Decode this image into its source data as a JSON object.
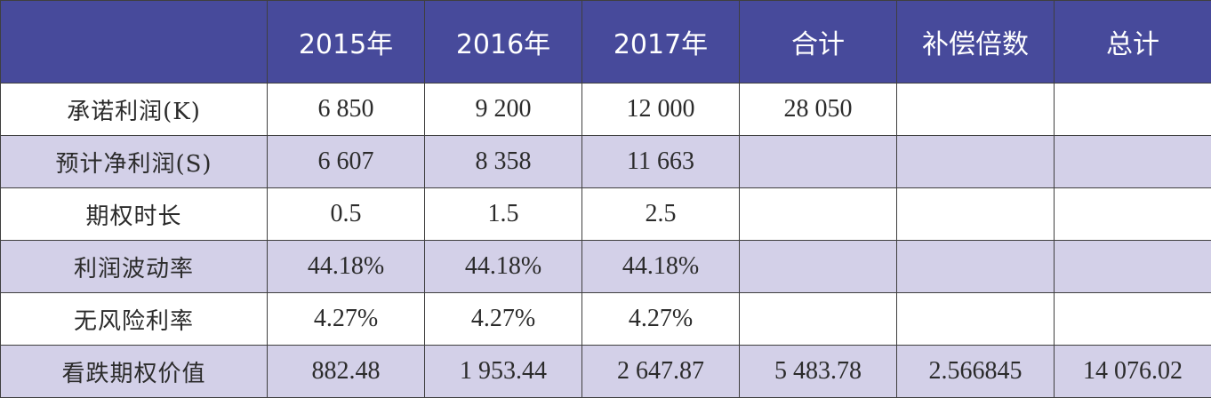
{
  "colors": {
    "header_bg": "#474a9b",
    "header_text": "#ffffff",
    "row_shade": "#d3d0e8",
    "row_white": "#ffffff",
    "border": "#3f3f3f"
  },
  "table": {
    "headers": [
      "",
      "2015年",
      "2016年",
      "2017年",
      "合计",
      "补偿倍数",
      "总计"
    ],
    "rows": [
      {
        "label": "承诺利润(K)",
        "values": [
          "6 850",
          "9 200",
          "12 000",
          "28 050",
          "",
          ""
        ]
      },
      {
        "label": "预计净利润(S)",
        "values": [
          "6 607",
          "8 358",
          "11 663",
          "",
          "",
          ""
        ]
      },
      {
        "label": "期权时长",
        "values": [
          "0.5",
          "1.5",
          "2.5",
          "",
          "",
          ""
        ]
      },
      {
        "label": "利润波动率",
        "values": [
          "44.18%",
          "44.18%",
          "44.18%",
          "",
          "",
          ""
        ]
      },
      {
        "label": "无风险利率",
        "values": [
          "4.27%",
          "4.27%",
          "4.27%",
          "",
          "",
          ""
        ]
      },
      {
        "label": "看跌期权价值",
        "values": [
          "882.48",
          "1 953.44",
          "2 647.87",
          "5 483.78",
          "2.566845",
          "14 076.02"
        ]
      }
    ]
  }
}
